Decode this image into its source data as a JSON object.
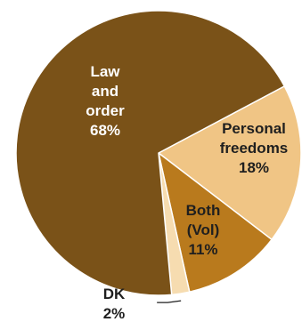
{
  "chart_data": {
    "type": "pie",
    "title": "",
    "slices": [
      {
        "name": "Law and order",
        "value": 68,
        "label_lines": [
          "Law",
          "and",
          "order",
          "68%"
        ],
        "color": "#7a5218"
      },
      {
        "name": "Personal freedoms",
        "value": 18,
        "label_lines": [
          "Personal",
          "freedoms",
          "18%"
        ],
        "color": "#f0c585"
      },
      {
        "name": "Both (Vol)",
        "value": 11,
        "label_lines": [
          "Both",
          "(Vol)",
          "11%"
        ],
        "color": "#b97a1d"
      },
      {
        "name": "DK",
        "value": 2,
        "label_lines": [
          "DK",
          "2%"
        ],
        "color": "#f6dcb0"
      }
    ],
    "legend": "none",
    "start": "upper-right",
    "direction": "clockwise"
  }
}
